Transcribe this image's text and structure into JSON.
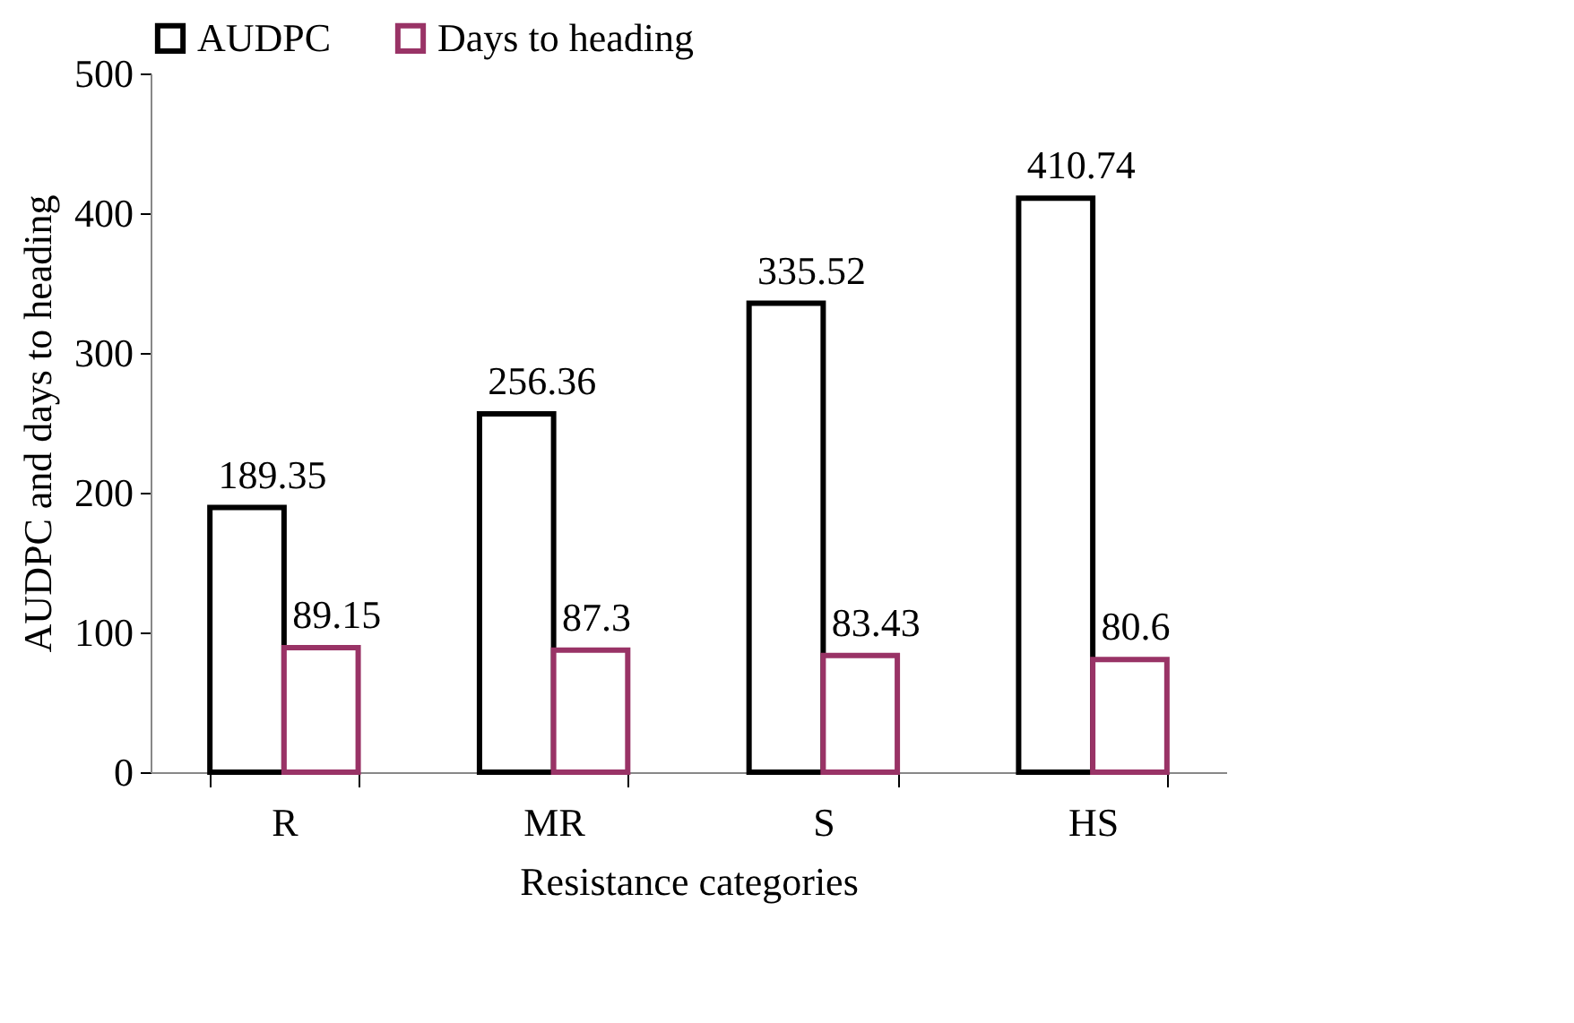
{
  "chart_data": {
    "type": "bar",
    "xlabel": "Resistance categories",
    "ylabel": "AUDPC and days to heading",
    "categories": [
      "R",
      "MR",
      "S",
      "HS"
    ],
    "series": [
      {
        "name": "AUDPC",
        "color": "#000000",
        "values": [
          189.35,
          256.36,
          335.52,
          410.74
        ]
      },
      {
        "name": "Days to heading",
        "color": "#993366",
        "values": [
          89.15,
          87.3,
          83.43,
          80.6
        ]
      }
    ],
    "ylim": [
      0,
      500
    ],
    "yticks": [
      0,
      100,
      200,
      300,
      400,
      500
    ],
    "grid": false,
    "legend": "top",
    "data_labels": true
  }
}
